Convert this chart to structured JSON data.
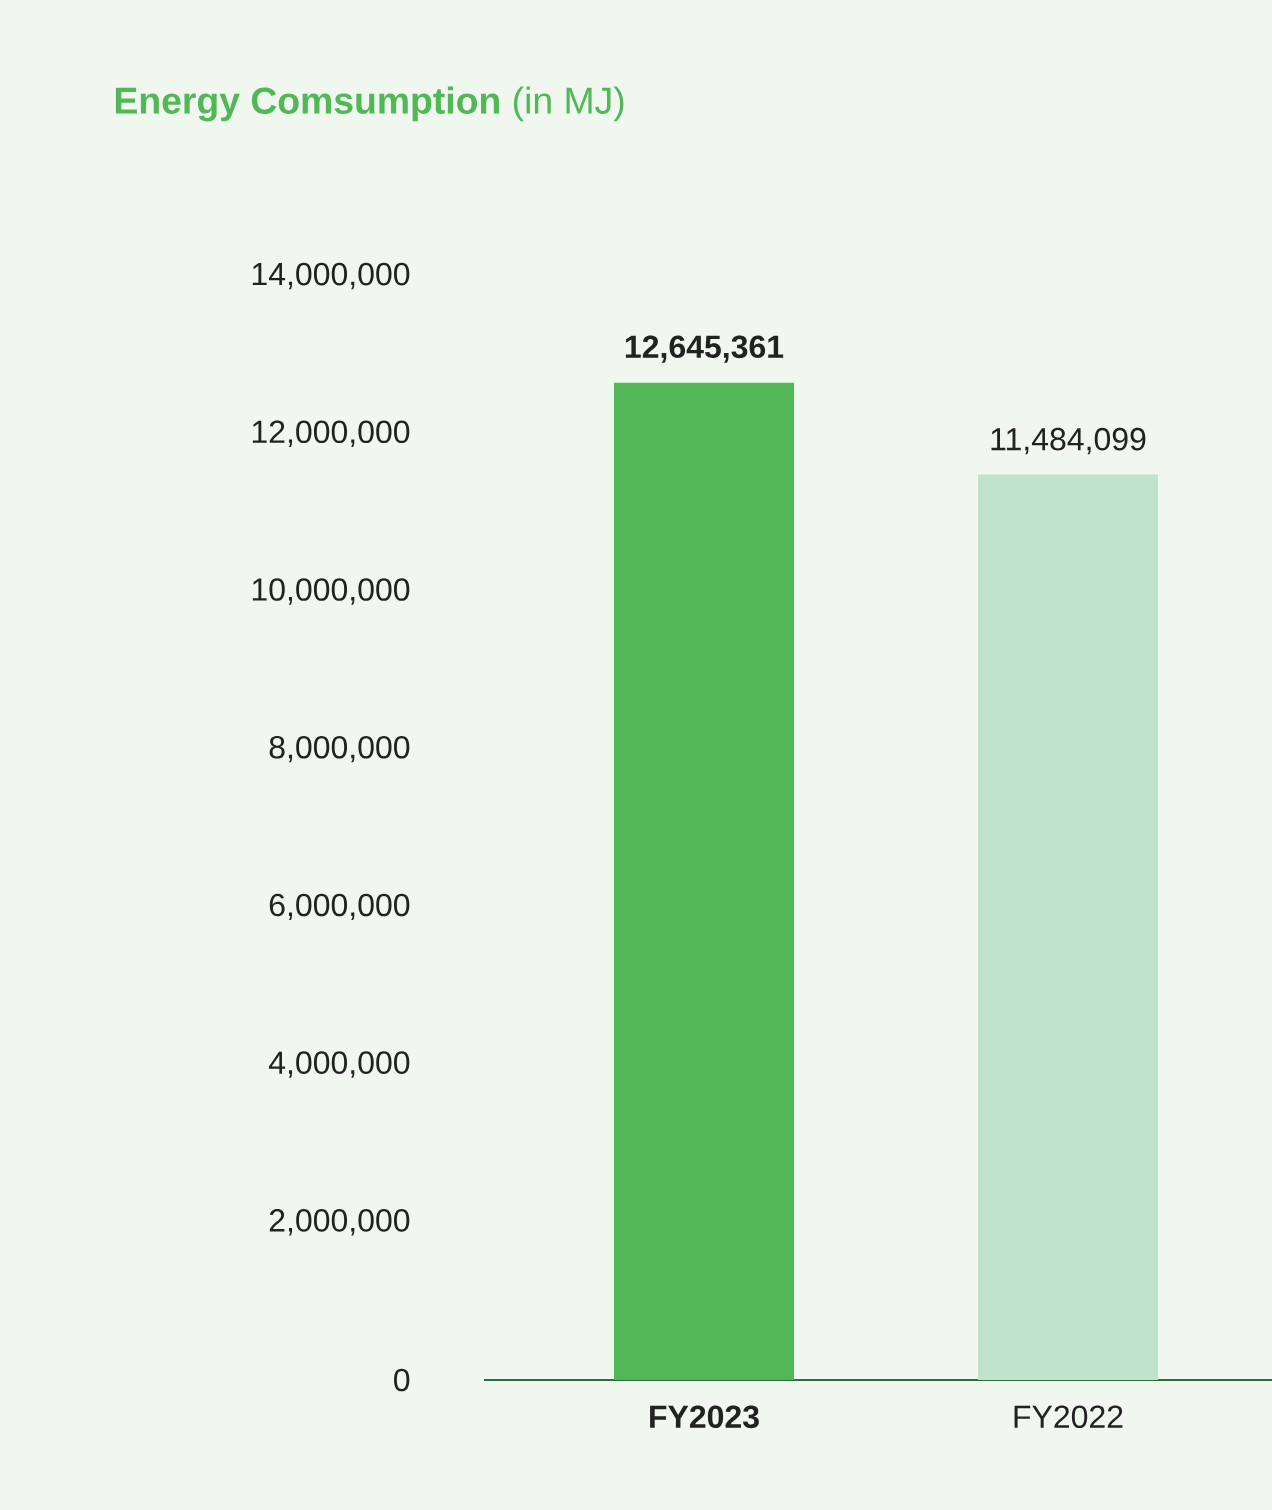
{
  "chart_data": {
    "type": "bar",
    "title": "**Energy Comsumption** (in MJ)",
    "categories": [
      "**FY2023**",
      "FY2022"
    ],
    "values": [
      12645361,
      11484099
    ],
    "colors": [
      "#52b857",
      "#c0e3cb"
    ],
    "value_labels": [
      "**12,645,361**",
      "11,484,099"
    ],
    "ylim": [
      0,
      14000000
    ],
    "yticks": [
      {
        "value": 0,
        "label": "0"
      },
      {
        "value": 2000000,
        "label": "2,000,000"
      },
      {
        "value": 4000000,
        "label": "4,000,000"
      },
      {
        "value": 6000000,
        "label": "6,000,000"
      },
      {
        "value": 8000000,
        "label": "8,000,000"
      },
      {
        "value": 10000000,
        "label": "10,000,000"
      },
      {
        "value": 12000000,
        "label": "12,000,000"
      },
      {
        "value": 14000000,
        "label": "14,000,000"
      }
    ]
  }
}
